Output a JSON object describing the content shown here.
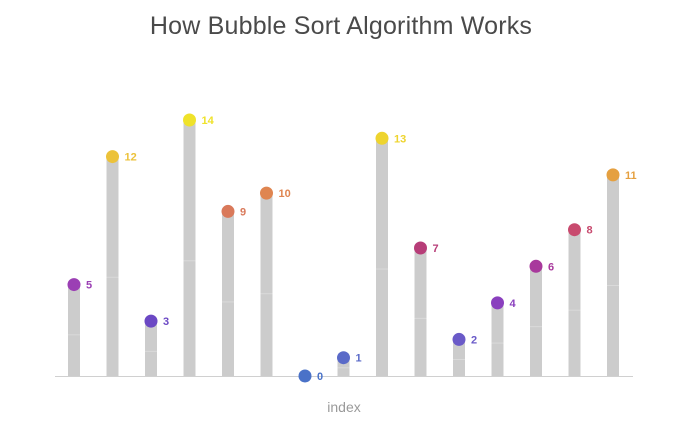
{
  "title": "How Bubble Sort Algorithm Works",
  "chart_data": {
    "type": "bar",
    "title": "How Bubble Sort Algorithm Works",
    "xlabel": "index",
    "ylabel": "",
    "ylim": [
      0,
      14
    ],
    "grid": false,
    "legend": "none",
    "bar_color": "#cccccc",
    "axis_color": "#d0d0d0",
    "values": [
      5,
      12,
      3,
      14,
      9,
      10,
      0,
      1,
      13,
      7,
      2,
      4,
      6,
      8,
      11
    ],
    "point_colors": {
      "0": "#4a72c8",
      "1": "#5a6ac8",
      "2": "#6a5ac8",
      "3": "#6b48c4",
      "4": "#8a3fbe",
      "5": "#9b3fb4",
      "6": "#a8399c",
      "7": "#b73d78",
      "8": "#c84a6e",
      "9": "#d9795a",
      "10": "#df8550",
      "11": "#e5a040",
      "12": "#ecc23a",
      "13": "#eed42e",
      "14": "#efe22a"
    }
  }
}
